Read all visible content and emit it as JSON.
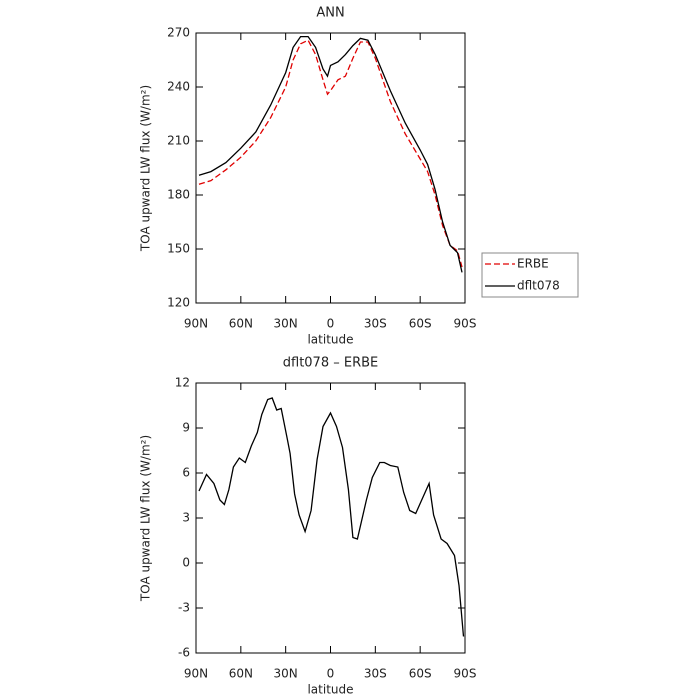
{
  "chart_data": [
    {
      "type": "line",
      "title": "ANN",
      "xlabel": "latitude",
      "ylabel": "TOA upward LW flux (W/m²)",
      "x": [
        88,
        80,
        70,
        60,
        50,
        40,
        30,
        25,
        20,
        15,
        10,
        5,
        2,
        0,
        -5,
        -10,
        -15,
        -20,
        -25,
        -30,
        -40,
        -50,
        -60,
        -65,
        -70,
        -75,
        -80,
        -85,
        -88
      ],
      "series": [
        {
          "name": "ERBE",
          "color": "#e00000",
          "dash": true,
          "values": [
            186,
            188,
            194,
            201,
            210,
            223,
            240,
            255,
            264,
            266,
            258,
            244,
            236,
            238,
            244,
            246,
            256,
            265,
            265,
            256,
            232,
            214,
            200,
            193,
            180,
            163,
            152,
            149,
            140
          ]
        },
        {
          "name": "dflt078",
          "color": "#000000",
          "dash": false,
          "values": [
            191,
            193,
            198,
            206,
            215,
            230,
            248,
            262,
            268,
            268,
            262,
            250,
            246,
            252,
            254,
            258,
            263,
            267,
            266,
            258,
            238,
            220,
            205,
            197,
            183,
            165,
            152,
            148,
            137
          ]
        }
      ],
      "xlim": [
        90,
        -90
      ],
      "xticks": [
        {
          "value": 90,
          "label": "90N"
        },
        {
          "value": 60,
          "label": "60N"
        },
        {
          "value": 30,
          "label": "30N"
        },
        0,
        {
          "value": -30,
          "label": "30S"
        },
        {
          "value": -60,
          "label": "60S"
        },
        {
          "value": -90,
          "label": "90S"
        }
      ],
      "ylim": [
        120,
        270
      ],
      "yticks": [
        120,
        150,
        180,
        210,
        240,
        270
      ],
      "legend": "right"
    },
    {
      "type": "line",
      "title": "dflt078 – ERBE",
      "xlabel": "latitude",
      "ylabel": "TOA upward LW flux (W/m²)",
      "x": [
        88,
        83,
        78,
        74,
        71,
        68,
        65,
        61,
        57,
        53,
        49,
        46,
        42,
        39,
        36,
        33,
        29,
        27,
        24,
        21,
        17,
        13,
        9,
        5,
        0,
        -4,
        -8,
        -12,
        -15,
        -18,
        -24,
        -28,
        -33,
        -36,
        -40,
        -45,
        -49,
        -53,
        -57,
        -61,
        -66,
        -69,
        -74,
        -78,
        -83,
        -86,
        -89
      ],
      "series": [
        {
          "color": "#000000",
          "dash": false,
          "values": [
            4.8,
            5.9,
            5.3,
            4.2,
            3.9,
            4.9,
            6.4,
            7.0,
            6.7,
            7.8,
            8.7,
            9.9,
            10.9,
            11.0,
            10.2,
            10.3,
            8.3,
            7.3,
            4.6,
            3.2,
            2.1,
            3.5,
            6.9,
            9.1,
            10.0,
            9.1,
            7.7,
            4.9,
            1.7,
            1.6,
            4.2,
            5.7,
            6.7,
            6.7,
            6.5,
            6.4,
            4.7,
            3.5,
            3.3,
            4.2,
            5.3,
            3.2,
            1.6,
            1.3,
            0.5,
            -1.5,
            -4.9
          ]
        }
      ],
      "xlim": [
        90,
        -90
      ],
      "xticks": [
        {
          "value": 90,
          "label": "90N"
        },
        {
          "value": 60,
          "label": "60N"
        },
        {
          "value": 30,
          "label": "30N"
        },
        0,
        {
          "value": -30,
          "label": "30S"
        },
        {
          "value": -60,
          "label": "60S"
        },
        {
          "value": -90,
          "label": "90S"
        }
      ],
      "ylim": [
        -6,
        12
      ],
      "yticks": [
        -6,
        -3,
        0,
        3,
        6,
        9,
        12
      ]
    }
  ]
}
